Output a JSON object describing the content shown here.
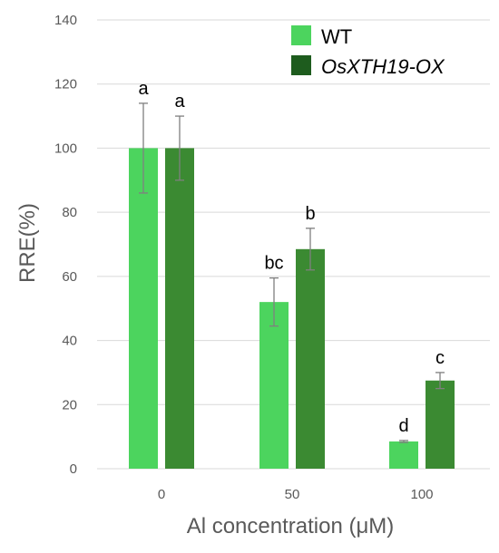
{
  "chart_data": {
    "type": "bar",
    "categories": [
      "0",
      "50",
      "100"
    ],
    "series": [
      {
        "name": "WT",
        "color": "#4cd45e",
        "values": [
          100,
          52,
          8.5
        ],
        "errors": [
          14,
          7.5,
          0.3
        ],
        "labels": [
          "a",
          "bc",
          "d"
        ]
      },
      {
        "name": "OsXTH19-OX",
        "color": "#3b8a32",
        "values": [
          100,
          68.5,
          27.5
        ],
        "errors": [
          10,
          6.5,
          2.5
        ],
        "labels": [
          "a",
          "b",
          "c"
        ]
      }
    ],
    "ylim": [
      0,
      140
    ],
    "yticks": [
      0,
      20,
      40,
      60,
      80,
      100,
      120,
      140
    ],
    "xlabel": "Al concentration (μM)",
    "ylabel": "RRE(%)",
    "grid": "horizontal",
    "legend": {
      "position": "top-right",
      "entries": [
        "WT",
        "OsXTH19-OX"
      ],
      "swatch_colors": [
        "#4cd45e",
        "#1e5c1e"
      ]
    }
  }
}
